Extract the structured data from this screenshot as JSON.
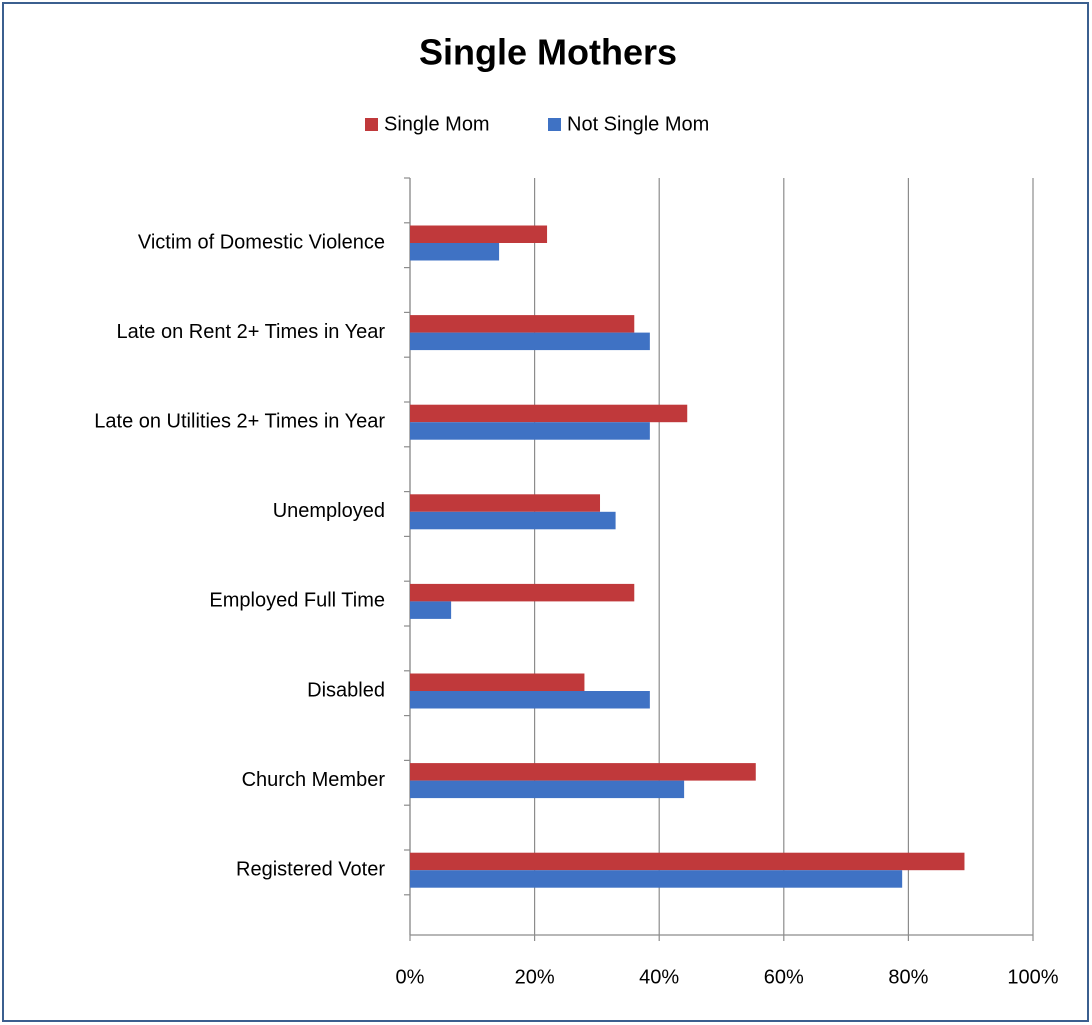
{
  "chart_data": {
    "type": "bar",
    "orientation": "horizontal",
    "title": "Single Mothers",
    "categories": [
      "Victim of Domestic Violence",
      "Late on Rent 2+ Times in Year",
      "Late on Utilities 2+ Times in Year",
      "Unemployed",
      "Employed Full Time",
      "Disabled",
      "Church Member",
      "Registered Voter"
    ],
    "series": [
      {
        "name": "Single Mom",
        "color": "#c0393b",
        "values": [
          22,
          36,
          44.5,
          30.5,
          36,
          28,
          55.5,
          89
        ]
      },
      {
        "name": "Not Single Mom",
        "color": "#3f72c4",
        "values": [
          14.3,
          38.5,
          38.5,
          33,
          6.6,
          38.5,
          44,
          79
        ]
      }
    ],
    "xlim": [
      0,
      100
    ],
    "xticks": [
      {
        "value": 0,
        "label": "0%"
      },
      {
        "value": 20,
        "label": "20%"
      },
      {
        "value": 40,
        "label": "40%"
      },
      {
        "value": 60,
        "label": "60%"
      },
      {
        "value": 80,
        "label": "80%"
      },
      {
        "value": 100,
        "label": "100%"
      }
    ],
    "grid": true,
    "legend": "top"
  }
}
